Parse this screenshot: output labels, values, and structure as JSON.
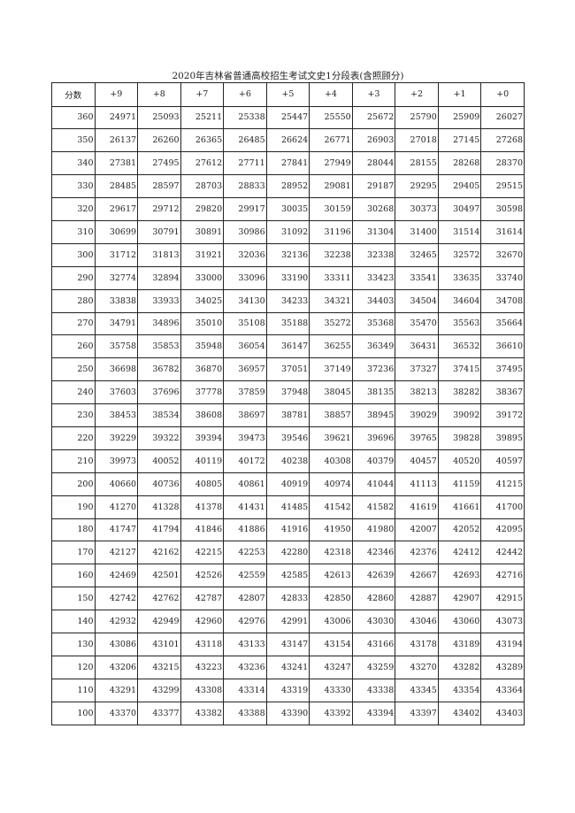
{
  "title": "2020年吉林省普通高校招生考试文史1分段表(含照顾分)",
  "headers": [
    "分数",
    "+9",
    "+8",
    "+7",
    "+6",
    "+5",
    "+4",
    "+3",
    "+2",
    "+1",
    "+0"
  ],
  "rows": [
    [
      "360",
      "24971",
      "25093",
      "25211",
      "25338",
      "25447",
      "25550",
      "25672",
      "25790",
      "25909",
      "26027"
    ],
    [
      "350",
      "26137",
      "26260",
      "26365",
      "26485",
      "26624",
      "26771",
      "26903",
      "27018",
      "27145",
      "27268"
    ],
    [
      "340",
      "27381",
      "27495",
      "27612",
      "27711",
      "27841",
      "27949",
      "28044",
      "28155",
      "28268",
      "28370"
    ],
    [
      "330",
      "28485",
      "28597",
      "28703",
      "28833",
      "28952",
      "29081",
      "29187",
      "29295",
      "29405",
      "29515"
    ],
    [
      "320",
      "29617",
      "29712",
      "29820",
      "29917",
      "30035",
      "30159",
      "30268",
      "30373",
      "30497",
      "30598"
    ],
    [
      "310",
      "30699",
      "30791",
      "30891",
      "30986",
      "31092",
      "31196",
      "31304",
      "31400",
      "31514",
      "31614"
    ],
    [
      "300",
      "31712",
      "31813",
      "31921",
      "32036",
      "32136",
      "32238",
      "32338",
      "32465",
      "32572",
      "32670"
    ],
    [
      "290",
      "32774",
      "32894",
      "33000",
      "33096",
      "33190",
      "33311",
      "33423",
      "33541",
      "33635",
      "33740"
    ],
    [
      "280",
      "33838",
      "33933",
      "34025",
      "34130",
      "34233",
      "34321",
      "34403",
      "34504",
      "34604",
      "34708"
    ],
    [
      "270",
      "34791",
      "34896",
      "35010",
      "35108",
      "35188",
      "35272",
      "35368",
      "35470",
      "35563",
      "35664"
    ],
    [
      "260",
      "35758",
      "35853",
      "35948",
      "36054",
      "36147",
      "36255",
      "36349",
      "36431",
      "36532",
      "36610"
    ],
    [
      "250",
      "36698",
      "36782",
      "36870",
      "36957",
      "37051",
      "37149",
      "37236",
      "37327",
      "37415",
      "37495"
    ],
    [
      "240",
      "37603",
      "37696",
      "37778",
      "37859",
      "37948",
      "38045",
      "38135",
      "38213",
      "38282",
      "38367"
    ],
    [
      "230",
      "38453",
      "38534",
      "38608",
      "38697",
      "38781",
      "38857",
      "38945",
      "39029",
      "39092",
      "39172"
    ],
    [
      "220",
      "39229",
      "39322",
      "39394",
      "39473",
      "39546",
      "39621",
      "39696",
      "39765",
      "39828",
      "39895"
    ],
    [
      "210",
      "39973",
      "40052",
      "40119",
      "40172",
      "40238",
      "40308",
      "40379",
      "40457",
      "40520",
      "40597"
    ],
    [
      "200",
      "40660",
      "40736",
      "40805",
      "40861",
      "40919",
      "40974",
      "41044",
      "41113",
      "41159",
      "41215"
    ],
    [
      "190",
      "41270",
      "41328",
      "41378",
      "41431",
      "41485",
      "41542",
      "41582",
      "41619",
      "41661",
      "41700"
    ],
    [
      "180",
      "41747",
      "41794",
      "41846",
      "41886",
      "41916",
      "41950",
      "41980",
      "42007",
      "42052",
      "42095"
    ],
    [
      "170",
      "42127",
      "42162",
      "42215",
      "42253",
      "42280",
      "42318",
      "42346",
      "42376",
      "42412",
      "42442"
    ],
    [
      "160",
      "42469",
      "42501",
      "42526",
      "42559",
      "42585",
      "42613",
      "42639",
      "42667",
      "42693",
      "42716"
    ],
    [
      "150",
      "42742",
      "42762",
      "42787",
      "42807",
      "42833",
      "42850",
      "42860",
      "42887",
      "42907",
      "42915"
    ],
    [
      "140",
      "42932",
      "42949",
      "42960",
      "42976",
      "42991",
      "43006",
      "43030",
      "43046",
      "43060",
      "43073"
    ],
    [
      "130",
      "43086",
      "43101",
      "43118",
      "43133",
      "43147",
      "43154",
      "43166",
      "43178",
      "43189",
      "43194"
    ],
    [
      "120",
      "43206",
      "43215",
      "43223",
      "43236",
      "43241",
      "43247",
      "43259",
      "43270",
      "43282",
      "43289"
    ],
    [
      "110",
      "43291",
      "43299",
      "43308",
      "43314",
      "43319",
      "43330",
      "43338",
      "43345",
      "43354",
      "43364"
    ],
    [
      "100",
      "43370",
      "43377",
      "43382",
      "43388",
      "43390",
      "43392",
      "43394",
      "43397",
      "43402",
      "43403"
    ]
  ]
}
